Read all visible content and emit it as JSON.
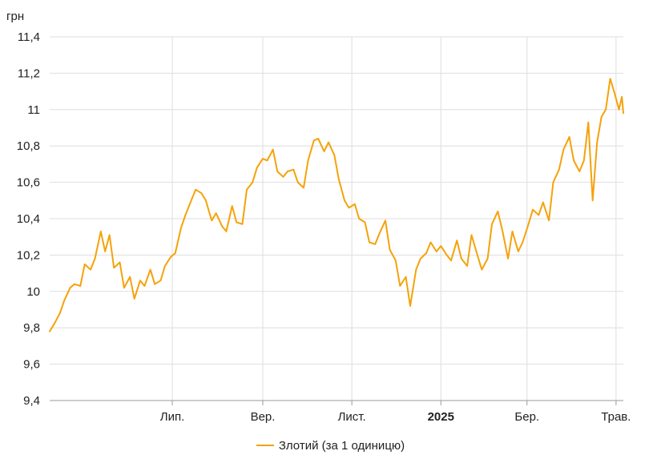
{
  "chart_data": {
    "type": "line",
    "unit_label": "грн",
    "y_range": [
      9.4,
      11.4
    ],
    "y_ticks": [
      {
        "value": 11.4,
        "label": "11,4"
      },
      {
        "value": 11.2,
        "label": "11,2"
      },
      {
        "value": 11.0,
        "label": "11"
      },
      {
        "value": 10.8,
        "label": "10,8"
      },
      {
        "value": 10.6,
        "label": "10,6"
      },
      {
        "value": 10.4,
        "label": "10,4"
      },
      {
        "value": 10.2,
        "label": "10,2"
      },
      {
        "value": 10.0,
        "label": "10"
      },
      {
        "value": 9.8,
        "label": "9,8"
      },
      {
        "value": 9.6,
        "label": "9,6"
      },
      {
        "value": 9.4,
        "label": "9,4"
      }
    ],
    "x_range": [
      "2024-04-08",
      "2025-05-06"
    ],
    "x_ticks": [
      {
        "date": "2024-07-01",
        "label": "Лип.",
        "bold": false
      },
      {
        "date": "2024-09-01",
        "label": "Вер.",
        "bold": false
      },
      {
        "date": "2024-11-01",
        "label": "Лист.",
        "bold": false
      },
      {
        "date": "2025-01-01",
        "label": "2025",
        "bold": true
      },
      {
        "date": "2025-03-01",
        "label": "Бер.",
        "bold": false
      },
      {
        "date": "2025-05-01",
        "label": "Трав.",
        "bold": false
      }
    ],
    "grid": true,
    "legend_position": "bottom",
    "series": [
      {
        "name": "Злотий (за 1 одиницю)",
        "color": "#f5a20a",
        "points": [
          [
            "2024-04-08",
            9.78
          ],
          [
            "2024-04-11",
            9.82
          ],
          [
            "2024-04-15",
            9.88
          ],
          [
            "2024-04-18",
            9.95
          ],
          [
            "2024-04-22",
            10.02
          ],
          [
            "2024-04-25",
            10.04
          ],
          [
            "2024-04-29",
            10.03
          ],
          [
            "2024-05-02",
            10.15
          ],
          [
            "2024-05-06",
            10.12
          ],
          [
            "2024-05-09",
            10.18
          ],
          [
            "2024-05-13",
            10.33
          ],
          [
            "2024-05-16",
            10.22
          ],
          [
            "2024-05-19",
            10.31
          ],
          [
            "2024-05-22",
            10.13
          ],
          [
            "2024-05-26",
            10.16
          ],
          [
            "2024-05-29",
            10.02
          ],
          [
            "2024-06-02",
            10.08
          ],
          [
            "2024-06-05",
            9.96
          ],
          [
            "2024-06-09",
            10.06
          ],
          [
            "2024-06-12",
            10.03
          ],
          [
            "2024-06-16",
            10.12
          ],
          [
            "2024-06-19",
            10.04
          ],
          [
            "2024-06-23",
            10.06
          ],
          [
            "2024-06-26",
            10.14
          ],
          [
            "2024-06-30",
            10.19
          ],
          [
            "2024-07-03",
            10.21
          ],
          [
            "2024-07-07",
            10.35
          ],
          [
            "2024-07-10",
            10.42
          ],
          [
            "2024-07-14",
            10.5
          ],
          [
            "2024-07-17",
            10.56
          ],
          [
            "2024-07-21",
            10.54
          ],
          [
            "2024-07-24",
            10.5
          ],
          [
            "2024-07-28",
            10.39
          ],
          [
            "2024-07-31",
            10.43
          ],
          [
            "2024-08-04",
            10.36
          ],
          [
            "2024-08-07",
            10.33
          ],
          [
            "2024-08-11",
            10.47
          ],
          [
            "2024-08-14",
            10.38
          ],
          [
            "2024-08-18",
            10.37
          ],
          [
            "2024-08-21",
            10.56
          ],
          [
            "2024-08-25",
            10.6
          ],
          [
            "2024-08-28",
            10.68
          ],
          [
            "2024-09-01",
            10.73
          ],
          [
            "2024-09-04",
            10.72
          ],
          [
            "2024-09-08",
            10.78
          ],
          [
            "2024-09-11",
            10.66
          ],
          [
            "2024-09-15",
            10.63
          ],
          [
            "2024-09-18",
            10.66
          ],
          [
            "2024-09-22",
            10.67
          ],
          [
            "2024-09-25",
            10.6
          ],
          [
            "2024-09-29",
            10.57
          ],
          [
            "2024-10-02",
            10.72
          ],
          [
            "2024-10-06",
            10.83
          ],
          [
            "2024-10-09",
            10.84
          ],
          [
            "2024-10-13",
            10.77
          ],
          [
            "2024-10-16",
            10.82
          ],
          [
            "2024-10-20",
            10.75
          ],
          [
            "2024-10-23",
            10.62
          ],
          [
            "2024-10-27",
            10.5
          ],
          [
            "2024-10-30",
            10.46
          ],
          [
            "2024-11-03",
            10.48
          ],
          [
            "2024-11-06",
            10.4
          ],
          [
            "2024-11-10",
            10.38
          ],
          [
            "2024-11-13",
            10.27
          ],
          [
            "2024-11-17",
            10.26
          ],
          [
            "2024-11-20",
            10.32
          ],
          [
            "2024-11-24",
            10.39
          ],
          [
            "2024-11-27",
            10.23
          ],
          [
            "2024-12-01",
            10.17
          ],
          [
            "2024-12-04",
            10.03
          ],
          [
            "2024-12-08",
            10.08
          ],
          [
            "2024-12-11",
            9.92
          ],
          [
            "2024-12-15",
            10.12
          ],
          [
            "2024-12-18",
            10.18
          ],
          [
            "2024-12-22",
            10.21
          ],
          [
            "2024-12-25",
            10.27
          ],
          [
            "2024-12-29",
            10.22
          ],
          [
            "2025-01-01",
            10.25
          ],
          [
            "2025-01-05",
            10.2
          ],
          [
            "2025-01-08",
            10.17
          ],
          [
            "2025-01-12",
            10.28
          ],
          [
            "2025-01-15",
            10.18
          ],
          [
            "2025-01-19",
            10.14
          ],
          [
            "2025-01-22",
            10.31
          ],
          [
            "2025-01-26",
            10.2
          ],
          [
            "2025-01-29",
            10.12
          ],
          [
            "2025-02-02",
            10.18
          ],
          [
            "2025-02-05",
            10.37
          ],
          [
            "2025-02-09",
            10.44
          ],
          [
            "2025-02-12",
            10.34
          ],
          [
            "2025-02-16",
            10.18
          ],
          [
            "2025-02-19",
            10.33
          ],
          [
            "2025-02-23",
            10.22
          ],
          [
            "2025-02-26",
            10.27
          ],
          [
            "2025-03-02",
            10.37
          ],
          [
            "2025-03-05",
            10.45
          ],
          [
            "2025-03-09",
            10.42
          ],
          [
            "2025-03-12",
            10.49
          ],
          [
            "2025-03-16",
            10.39
          ],
          [
            "2025-03-19",
            10.6
          ],
          [
            "2025-03-23",
            10.67
          ],
          [
            "2025-03-26",
            10.78
          ],
          [
            "2025-03-30",
            10.85
          ],
          [
            "2025-04-02",
            10.72
          ],
          [
            "2025-04-06",
            10.66
          ],
          [
            "2025-04-09",
            10.72
          ],
          [
            "2025-04-12",
            10.93
          ],
          [
            "2025-04-15",
            10.5
          ],
          [
            "2025-04-18",
            10.82
          ],
          [
            "2025-04-21",
            10.96
          ],
          [
            "2025-04-24",
            11.0
          ],
          [
            "2025-04-27",
            11.17
          ],
          [
            "2025-04-30",
            11.09
          ],
          [
            "2025-05-03",
            11.0
          ],
          [
            "2025-05-05",
            11.07
          ],
          [
            "2025-05-06",
            10.98
          ]
        ]
      }
    ]
  }
}
